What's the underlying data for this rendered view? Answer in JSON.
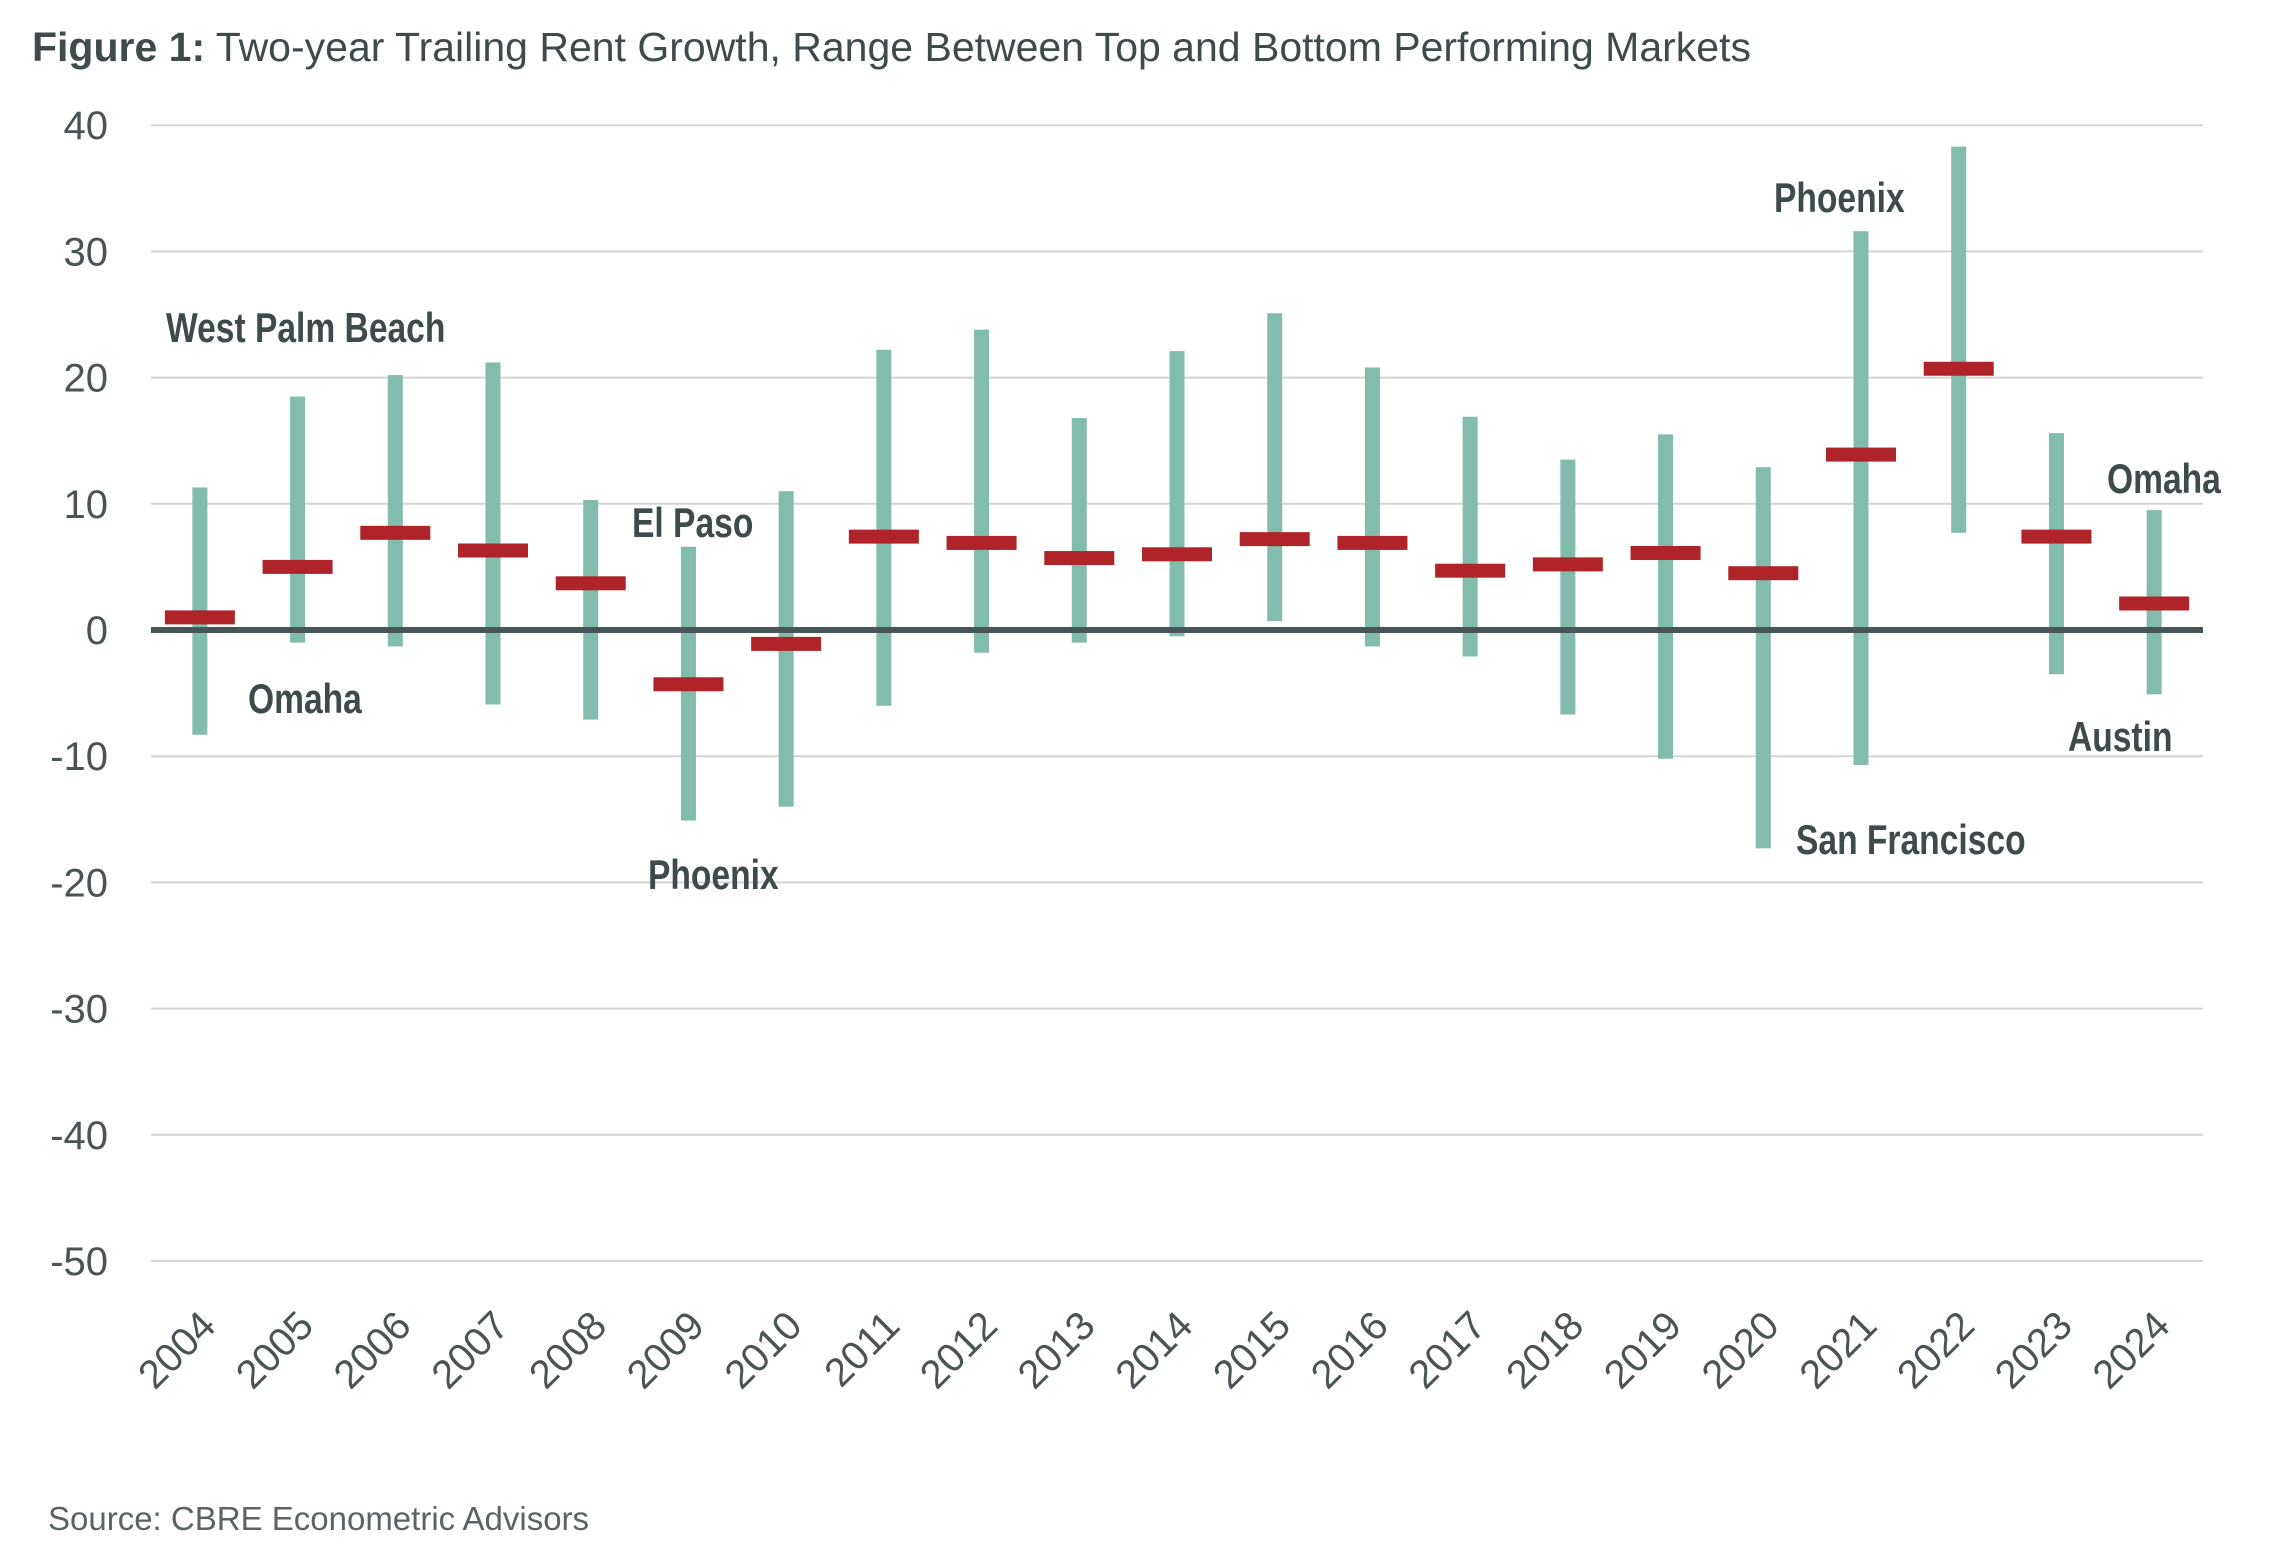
{
  "title": {
    "prefix": "Figure 1:",
    "text": " Two-year Trailing Rent Growth, Range Between Top and Bottom Performing Markets"
  },
  "source": "Source: CBRE Econometric Advisors",
  "chart_data": {
    "type": "range-bar",
    "title": "Figure 1: Two-year Trailing Rent Growth, Range Between Top and Bottom Performing Markets",
    "xlabel": "",
    "ylabel": "",
    "ylim": [
      -50,
      40
    ],
    "yticks": [
      40,
      30,
      20,
      10,
      0,
      -10,
      -20,
      -30,
      -40,
      -50
    ],
    "grid": true,
    "categories": [
      "2004",
      "2005",
      "2006",
      "2007",
      "2008",
      "2009",
      "2010",
      "2011",
      "2012",
      "2013",
      "2014",
      "2015",
      "2016",
      "2017",
      "2018",
      "2019",
      "2020",
      "2021",
      "2022",
      "2023",
      "2024"
    ],
    "series": [
      {
        "role": "top",
        "values": [
          11.3,
          18.5,
          20.2,
          21.2,
          10.3,
          6.6,
          11.0,
          22.2,
          23.8,
          16.8,
          22.1,
          25.1,
          20.8,
          16.9,
          13.5,
          15.5,
          12.9,
          31.6,
          38.3,
          15.6,
          9.5
        ]
      },
      {
        "role": "bottom",
        "values": [
          -8.3,
          -1.0,
          -1.3,
          -5.9,
          -7.1,
          -15.1,
          -14.0,
          -6.0,
          -1.8,
          -1.0,
          -0.5,
          0.7,
          -1.3,
          -2.1,
          -6.7,
          -10.2,
          -17.3,
          -10.7,
          7.7,
          -3.5,
          -5.1
        ]
      },
      {
        "role": "marker",
        "values": [
          1.0,
          5.0,
          7.7,
          6.3,
          3.7,
          -4.3,
          -1.1,
          7.4,
          6.9,
          5.7,
          6.0,
          7.2,
          6.9,
          4.7,
          5.2,
          6.1,
          4.5,
          13.9,
          20.7,
          7.4,
          2.1
        ]
      }
    ],
    "annotations": [
      {
        "text": "West Palm Beach",
        "year": "2004",
        "end": "top"
      },
      {
        "text": "Omaha",
        "year": "2004",
        "end": "bottom"
      },
      {
        "text": "El Paso",
        "year": "2009",
        "end": "top"
      },
      {
        "text": "Phoenix",
        "year": "2009",
        "end": "bottom"
      },
      {
        "text": "Phoenix",
        "year": "2021",
        "end": "top"
      },
      {
        "text": "San Francisco",
        "year": "2020",
        "end": "bottom"
      },
      {
        "text": "Omaha",
        "year": "2024",
        "end": "top"
      },
      {
        "text": "Austin",
        "year": "2024",
        "end": "bottom"
      }
    ],
    "colors": {
      "range": "#82bcad",
      "marker": "#ae2428",
      "zero_line": "#475557",
      "grid": "#d4d4d4"
    }
  }
}
